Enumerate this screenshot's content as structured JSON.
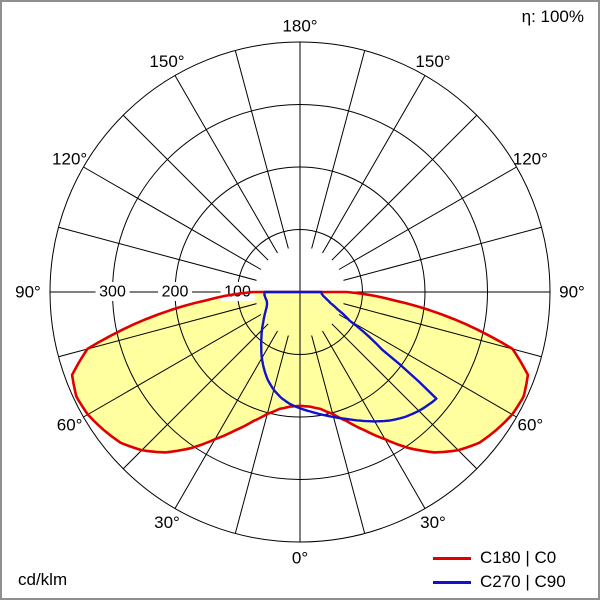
{
  "header": {
    "efficiency": "η: 100%"
  },
  "footer": {
    "unit": "cd/klm"
  },
  "legend": [
    {
      "label": "C180 | C0",
      "color": "#e00000"
    },
    {
      "label": "C270 | C90",
      "color": "#1212cc"
    }
  ],
  "chart_data": {
    "type": "polar",
    "subtype": "luminous-intensity-distribution",
    "title": "",
    "unit": "cd/klm",
    "efficiency": "η: 100%",
    "radial_max": 400,
    "radial_tick_labels": [
      "100",
      "200",
      "300"
    ],
    "angle_tick_labels": [
      "0°",
      "30°",
      "60°",
      "90°",
      "120°",
      "150°",
      "180°"
    ],
    "grid": {
      "spoke_step_deg": 15,
      "inner_clear_radius": 45,
      "ring_step": 100
    },
    "series": [
      {
        "name": "C180 | C0",
        "color": "#e00000",
        "fill": "#ffffa0",
        "points": [
          [
            -90,
            75
          ],
          [
            -85,
            150
          ],
          [
            -80,
            250
          ],
          [
            -75,
            352
          ],
          [
            -70,
            388
          ],
          [
            -65,
            395
          ],
          [
            -60,
            392
          ],
          [
            -55,
            384
          ],
          [
            -50,
            375
          ],
          [
            -45,
            358
          ],
          [
            -40,
            335
          ],
          [
            -35,
            305
          ],
          [
            -30,
            272
          ],
          [
            -25,
            244
          ],
          [
            -20,
            220
          ],
          [
            -15,
            202
          ],
          [
            -10,
            190
          ],
          [
            -5,
            184
          ],
          [
            0,
            182
          ],
          [
            5,
            184
          ],
          [
            10,
            190
          ],
          [
            15,
            202
          ],
          [
            20,
            220
          ],
          [
            25,
            244
          ],
          [
            30,
            272
          ],
          [
            35,
            305
          ],
          [
            40,
            335
          ],
          [
            45,
            358
          ],
          [
            50,
            375
          ],
          [
            55,
            384
          ],
          [
            60,
            392
          ],
          [
            65,
            395
          ],
          [
            70,
            388
          ],
          [
            75,
            352
          ],
          [
            80,
            250
          ],
          [
            85,
            150
          ],
          [
            90,
            75
          ]
        ]
      },
      {
        "name": "C270 | C90",
        "color": "#1212cc",
        "fill": null,
        "points": [
          [
            -90,
            57
          ],
          [
            -85,
            57
          ],
          [
            -80,
            56
          ],
          [
            -75,
            55
          ],
          [
            -70,
            56
          ],
          [
            -65,
            59
          ],
          [
            -60,
            64
          ],
          [
            -55,
            70
          ],
          [
            -50,
            77
          ],
          [
            -45,
            86
          ],
          [
            -40,
            96
          ],
          [
            -35,
            108
          ],
          [
            -30,
            122
          ],
          [
            -25,
            136
          ],
          [
            -20,
            150
          ],
          [
            -15,
            162
          ],
          [
            -10,
            172
          ],
          [
            -5,
            180
          ],
          [
            0,
            186
          ],
          [
            5,
            192
          ],
          [
            10,
            199
          ],
          [
            15,
            207
          ],
          [
            20,
            216
          ],
          [
            25,
            227
          ],
          [
            30,
            239
          ],
          [
            35,
            251
          ],
          [
            40,
            261
          ],
          [
            45,
            269
          ],
          [
            50,
            275
          ],
          [
            52,
            277
          ],
          [
            55,
            160
          ],
          [
            60,
            92
          ],
          [
            65,
            67
          ],
          [
            70,
            52
          ],
          [
            75,
            44
          ],
          [
            80,
            38
          ],
          [
            85,
            35
          ],
          [
            90,
            34
          ]
        ]
      }
    ]
  }
}
